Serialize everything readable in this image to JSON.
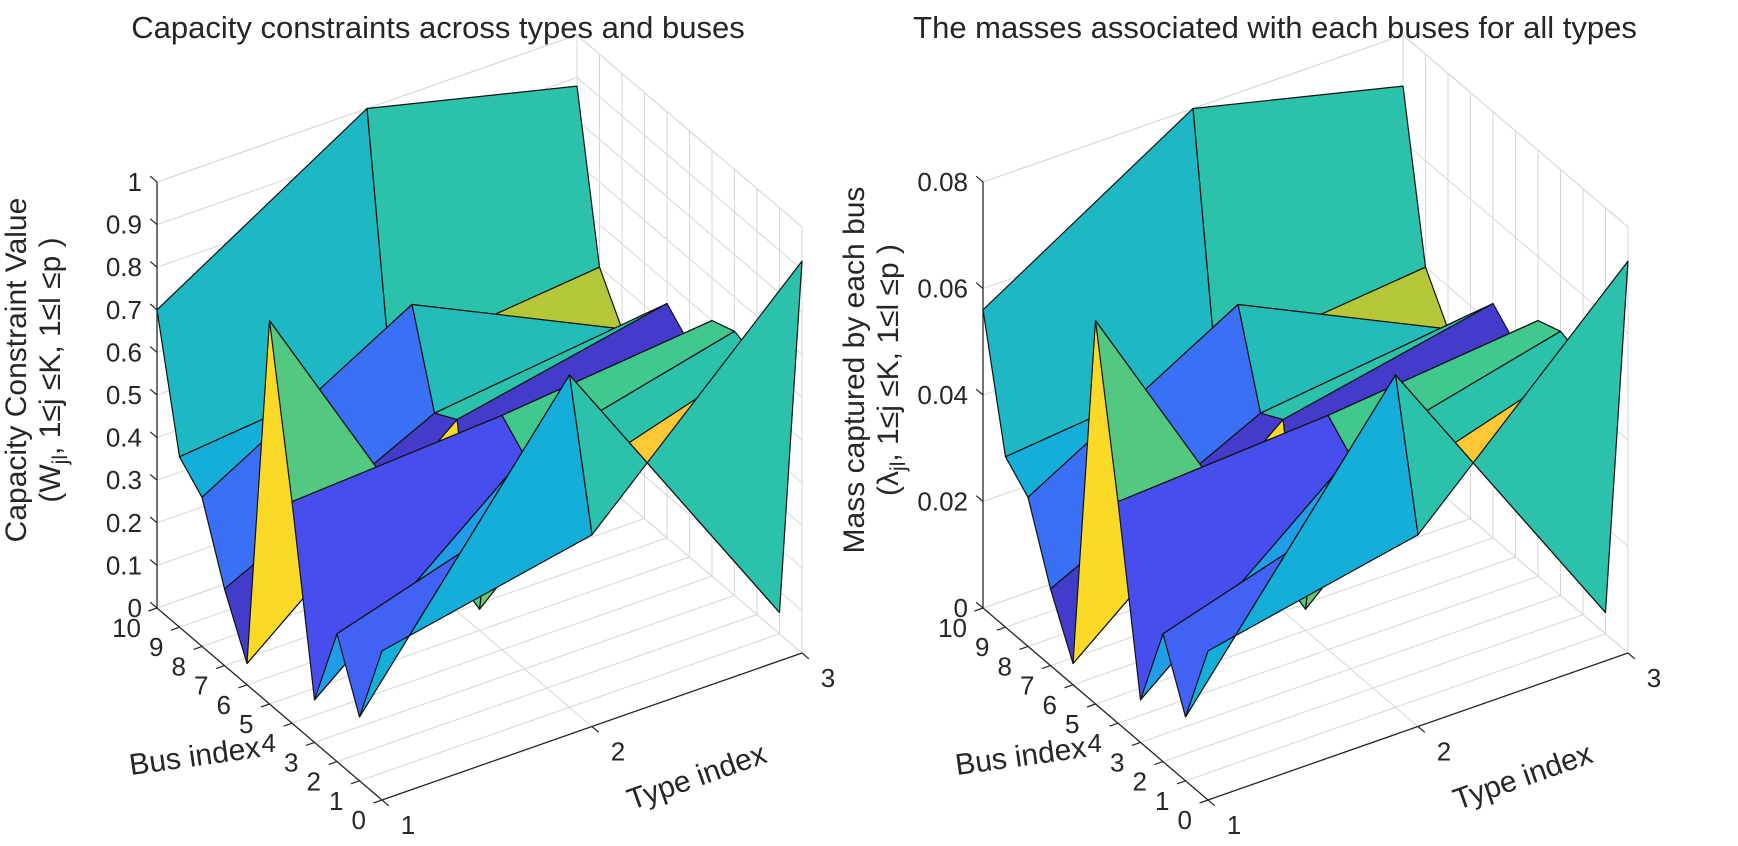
{
  "page": {
    "background": "#ffffff",
    "text_color": "#262626",
    "grid_color": "#d6d6d6",
    "axis_color": "#262626"
  },
  "chart_data": {
    "type": "surface",
    "layout": "two 3D surface plots side by side, MATLAB default view",
    "colormap": {
      "name": "parula",
      "stops": [
        [
          0,
          "#3e2aa8"
        ],
        [
          0.11,
          "#4852f4"
        ],
        [
          0.235,
          "#2e87f7"
        ],
        [
          0.36,
          "#12b1d6"
        ],
        [
          0.49,
          "#37c897"
        ],
        [
          0.615,
          "#abc739"
        ],
        [
          0.74,
          "#fec338"
        ],
        [
          0.865,
          "#fccf30"
        ],
        [
          1,
          "#f9fb0e"
        ]
      ]
    },
    "charts": [
      {
        "id": "capacity",
        "title": "Capacity constraints across types and buses",
        "xlabel": "Type index",
        "ylabel": "Bus index",
        "zlabel_line1": "Capacity Constraint Value",
        "zlabel_line2_pre": "(W",
        "zlabel_line2_sub": "jl",
        "zlabel_line2_post": ", 1≤j ≤K, 1≤l ≤p )",
        "zlim": [
          0,
          1
        ],
        "zticks": [
          "0",
          "0.1",
          "0.2",
          "0.3",
          "0.4",
          "0.5",
          "0.6",
          "0.7",
          "0.8",
          "0.9",
          "1"
        ],
        "xticks": [
          "1",
          "2",
          "3"
        ],
        "yticks": [
          "0",
          "1",
          "2",
          "3",
          "4",
          "5",
          "6",
          "7",
          "8",
          "9",
          "10"
        ],
        "type_index": [
          1,
          2,
          3
        ],
        "bus_index": [
          0,
          1,
          2,
          3,
          4,
          5,
          6,
          7,
          8,
          9,
          10
        ],
        "z_values": [
          [
            0.35,
            0.45,
            0.92
          ],
          [
            0.15,
            0.78,
            0.05
          ],
          [
            0.3,
            0.45,
            0.6
          ],
          [
            0.1,
            0.5,
            0.62
          ],
          [
            0.52,
            0.55,
            0.6
          ],
          [
            0.9,
            0.05,
            0.5
          ],
          [
            0.05,
            0.45,
            0.55
          ],
          [
            0.18,
            0.42,
            0.48
          ],
          [
            0.35,
            0.63,
            0.4
          ],
          [
            0.4,
            0.45,
            0.5
          ],
          [
            0.7,
            1.0,
            0.88
          ]
        ]
      },
      {
        "id": "masses",
        "title": "The masses associated with each buses for all types",
        "xlabel": "Type index",
        "ylabel": "Bus index",
        "zlabel_line1": "Mass captured by each bus",
        "zlabel_line2_pre": "(λ",
        "zlabel_line2_sub": "jl",
        "zlabel_line2_post": ", 1≤j ≤K, 1≤l ≤p )",
        "zlim": [
          0,
          0.08
        ],
        "zticks": [
          "0",
          "0.02",
          "0.04",
          "0.06",
          "0.08"
        ],
        "xticks": [
          "1",
          "2",
          "3"
        ],
        "yticks": [
          "0",
          "1",
          "2",
          "3",
          "4",
          "5",
          "6",
          "7",
          "8",
          "9",
          "10"
        ],
        "type_index": [
          1,
          2,
          3
        ],
        "bus_index": [
          0,
          1,
          2,
          3,
          4,
          5,
          6,
          7,
          8,
          9,
          10
        ],
        "z_values": [
          [
            0.028,
            0.036,
            0.0736
          ],
          [
            0.012,
            0.0624,
            0.004
          ],
          [
            0.024,
            0.036,
            0.048
          ],
          [
            0.008,
            0.04,
            0.0496
          ],
          [
            0.0416,
            0.044,
            0.048
          ],
          [
            0.072,
            0.004,
            0.04
          ],
          [
            0.004,
            0.036,
            0.044
          ],
          [
            0.0144,
            0.0336,
            0.0384
          ],
          [
            0.028,
            0.0504,
            0.032
          ],
          [
            0.032,
            0.036,
            0.04
          ],
          [
            0.056,
            0.08,
            0.0704
          ]
        ]
      }
    ]
  }
}
